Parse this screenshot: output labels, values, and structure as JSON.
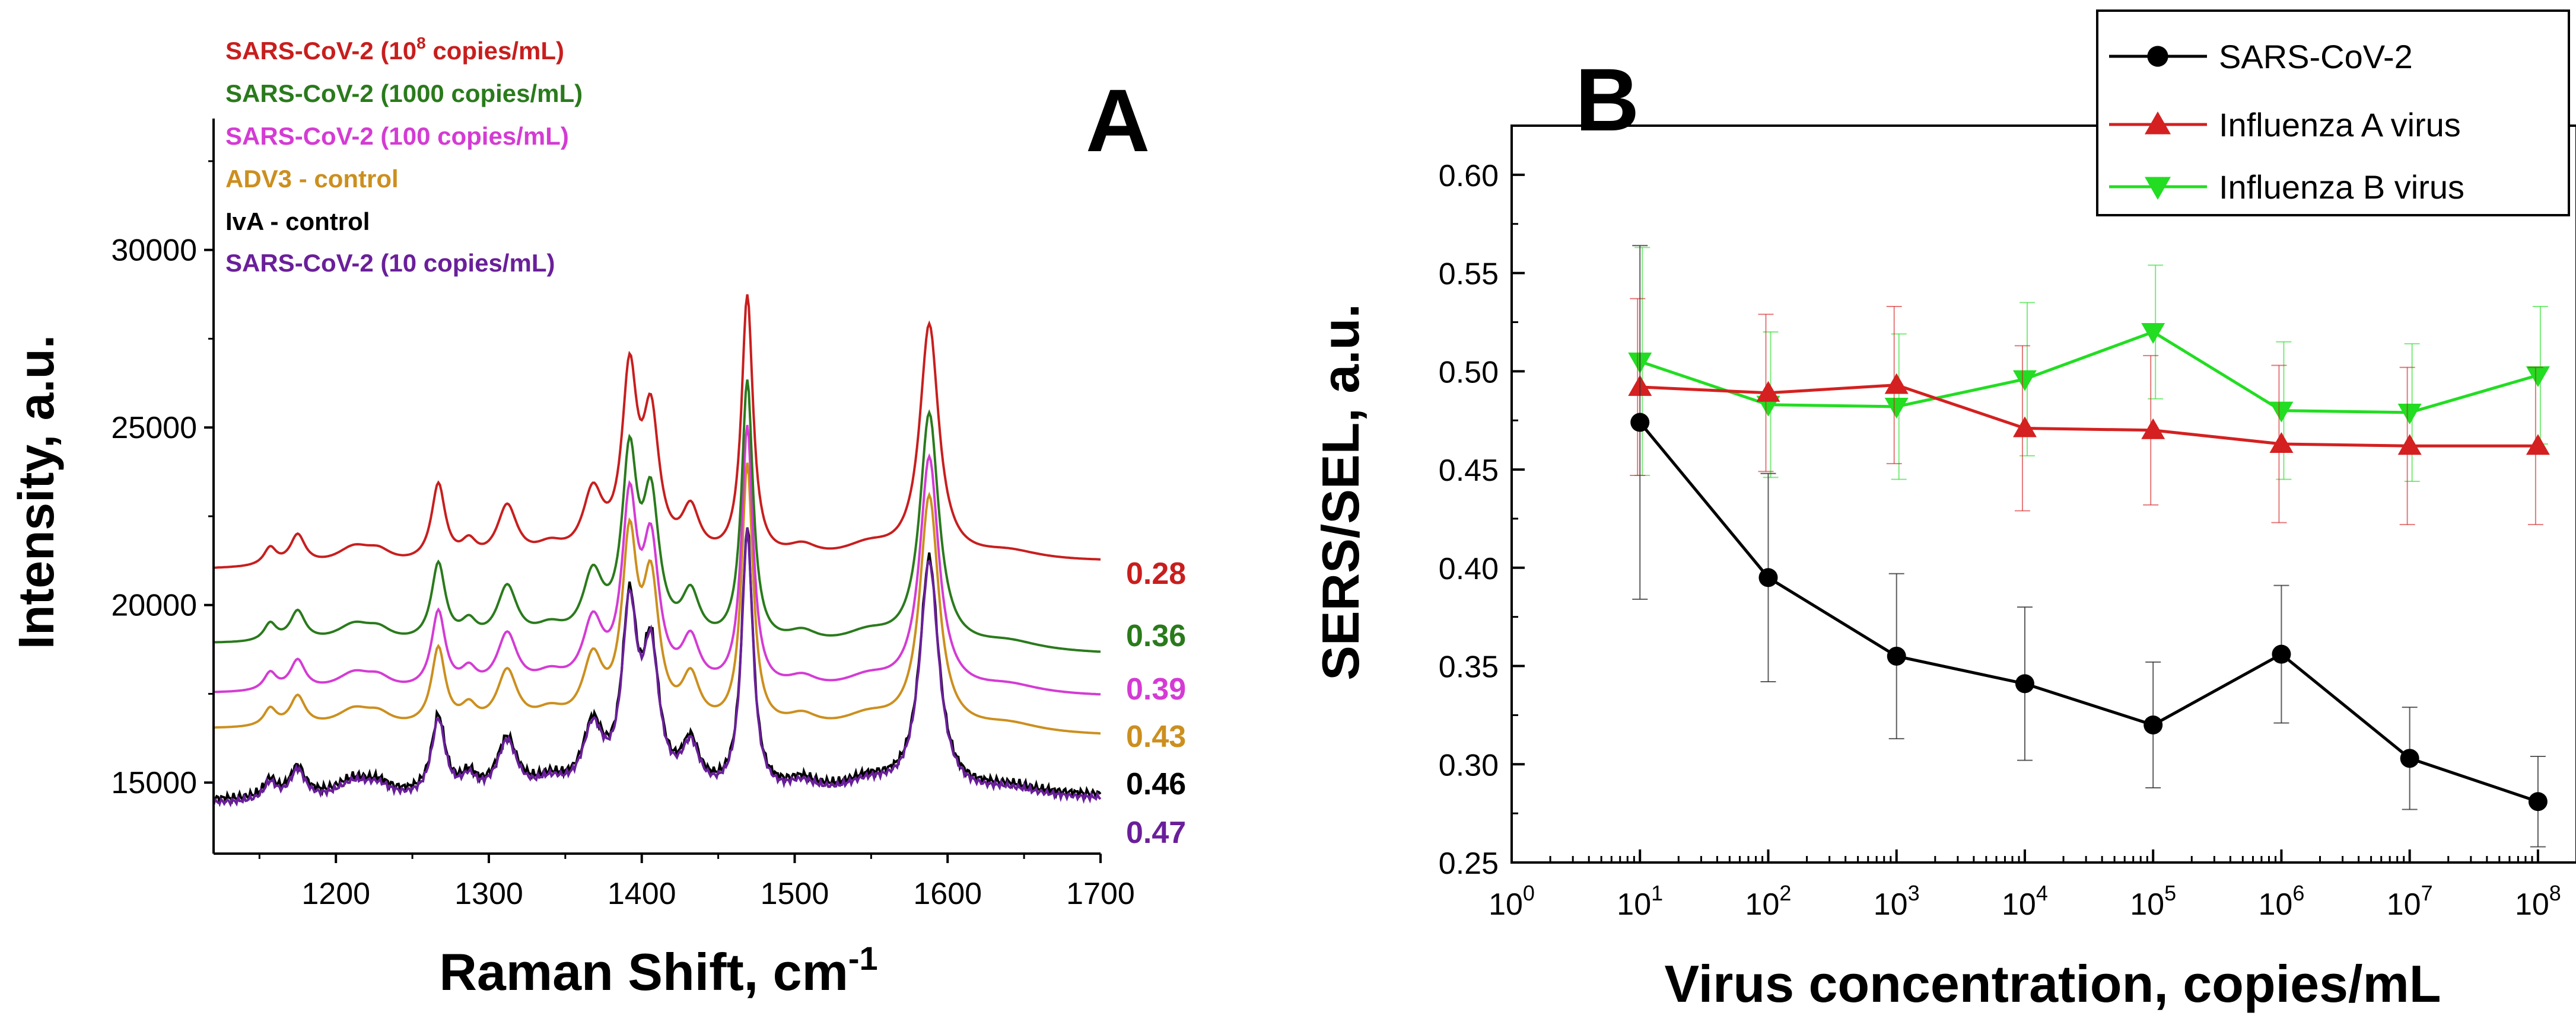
{
  "chart_data": [
    {
      "panel": "A",
      "type": "line",
      "xlabel": "Raman Shift, cm",
      "xlabel_sup": "-1",
      "ylabel": "Intensity, a.u.",
      "xlim": [
        1120,
        1700
      ],
      "ylim": [
        13000,
        33700
      ],
      "x_ticks": [
        1200,
        1300,
        1400,
        1500,
        1600,
        1700
      ],
      "y_ticks": [
        15000,
        20000,
        25000,
        30000
      ],
      "legend_placement": "top-left",
      "peaks": [
        {
          "x": 1157,
          "w": 5,
          "h": 0.5
        },
        {
          "x": 1175,
          "w": 6,
          "h": 0.85
        },
        {
          "x": 1212,
          "w": 14,
          "h": 0.5
        },
        {
          "x": 1228,
          "w": 10,
          "h": 0.3
        },
        {
          "x": 1267,
          "w": 5.5,
          "h": 2.2
        },
        {
          "x": 1287,
          "w": 6,
          "h": 0.5
        },
        {
          "x": 1312,
          "w": 8,
          "h": 1.55
        },
        {
          "x": 1340,
          "w": 12,
          "h": 0.4
        },
        {
          "x": 1368,
          "w": 8,
          "h": 1.8
        },
        {
          "x": 1392,
          "w": 6,
          "h": 5.0
        },
        {
          "x": 1406,
          "w": 6.5,
          "h": 3.8
        },
        {
          "x": 1432,
          "w": 7,
          "h": 1.3
        },
        {
          "x": 1469,
          "w": 4.5,
          "h": 7.4
        },
        {
          "x": 1505,
          "w": 12,
          "h": 0.35
        },
        {
          "x": 1548,
          "w": 20,
          "h": 0.4
        },
        {
          "x": 1588,
          "w": 7.5,
          "h": 6.6
        },
        {
          "x": 1640,
          "w": 25,
          "h": 0.25
        }
      ],
      "series": [
        {
          "name": "SARS-CoV-2 (10",
          "name_sup": "8",
          "name_tail": " copies/mL)",
          "color": "#c81e1e",
          "base_start": 21000,
          "base_end": 21200,
          "scale": 1000,
          "noise": 0,
          "end_label": "0.28"
        },
        {
          "name": "SARS-CoV-2 (1000 copies/mL)",
          "name_sup": "",
          "name_tail": "",
          "color": "#2a7a1c",
          "base_start": 18900,
          "base_end": 18600,
          "scale": 1000,
          "noise": 0,
          "end_label": "0.36"
        },
        {
          "name": "SARS-CoV-2 (100 copies/mL)",
          "name_sup": "",
          "name_tail": "",
          "color": "#d43bd4",
          "base_start": 17500,
          "base_end": 17400,
          "scale": 1000,
          "noise": 0,
          "end_label": "0.39"
        },
        {
          "name": "ADV3 - control",
          "name_sup": "",
          "name_tail": "",
          "color": "#cc8f1e",
          "base_start": 16500,
          "base_end": 16300,
          "scale": 1000,
          "noise": 0,
          "end_label": "0.43"
        },
        {
          "name": "IvA - control",
          "name_sup": "",
          "name_tail": "",
          "color": "#000000",
          "base_start": 14500,
          "base_end": 14600,
          "scale": 1000,
          "noise": 140,
          "end_label": "0.46"
        },
        {
          "name": "SARS-CoV-2 (10 copies/mL)",
          "name_sup": "",
          "name_tail": "",
          "color": "#6a1f9a",
          "base_start": 14400,
          "base_end": 14500,
          "scale": 1000,
          "noise": 100,
          "end_label": "0.47"
        }
      ]
    },
    {
      "panel": "B",
      "type": "line",
      "xlabel": "Virus concentration, copies/mL",
      "ylabel": "SERS/SEL, a.u.",
      "x_scale": "log",
      "xlim": [
        1,
        200000000
      ],
      "ylim": [
        0.25,
        0.625
      ],
      "x_ticks": [
        {
          "base": "10",
          "exp": "0",
          "value": 1
        },
        {
          "base": "10",
          "exp": "1",
          "value": 10
        },
        {
          "base": "10",
          "exp": "2",
          "value": 100
        },
        {
          "base": "10",
          "exp": "3",
          "value": 1000
        },
        {
          "base": "10",
          "exp": "4",
          "value": 10000
        },
        {
          "base": "10",
          "exp": "5",
          "value": 100000
        },
        {
          "base": "10",
          "exp": "6",
          "value": 1000000
        },
        {
          "base": "10",
          "exp": "7",
          "value": 10000000
        },
        {
          "base": "10",
          "exp": "8",
          "value": 100000000
        }
      ],
      "y_ticks": [
        "0.25",
        "0.30",
        "0.35",
        "0.40",
        "0.45",
        "0.50",
        "0.55",
        "0.60"
      ],
      "legend_placement": "top-right",
      "x": [
        10,
        100,
        1000,
        10000,
        100000,
        1000000,
        10000000,
        100000000
      ],
      "series": [
        {
          "name": "SARS-CoV-2",
          "color": "#000000",
          "marker": "circle",
          "values": [
            0.474,
            0.395,
            0.355,
            0.341,
            0.32,
            0.356,
            0.303,
            0.281
          ],
          "errors": [
            0.09,
            0.053,
            0.042,
            0.039,
            0.032,
            0.035,
            0.026,
            0.023
          ]
        },
        {
          "name": "Influenza A virus",
          "color": "#d42020",
          "marker": "triangle-up",
          "values": [
            0.492,
            0.489,
            0.493,
            0.471,
            0.47,
            0.463,
            0.462,
            0.462
          ],
          "errors": [
            0.045,
            0.04,
            0.04,
            0.042,
            0.038,
            0.04,
            0.04,
            0.04
          ]
        },
        {
          "name": "Influenza B virus",
          "color": "#22dd22",
          "marker": "triangle-down",
          "values": [
            0.505,
            0.483,
            0.482,
            0.496,
            0.52,
            0.48,
            0.479,
            0.498
          ],
          "errors": [
            0.058,
            0.037,
            0.037,
            0.039,
            0.034,
            0.035,
            0.035,
            0.035
          ]
        }
      ]
    }
  ],
  "panel_labels": {
    "a": "A",
    "b": "B"
  }
}
